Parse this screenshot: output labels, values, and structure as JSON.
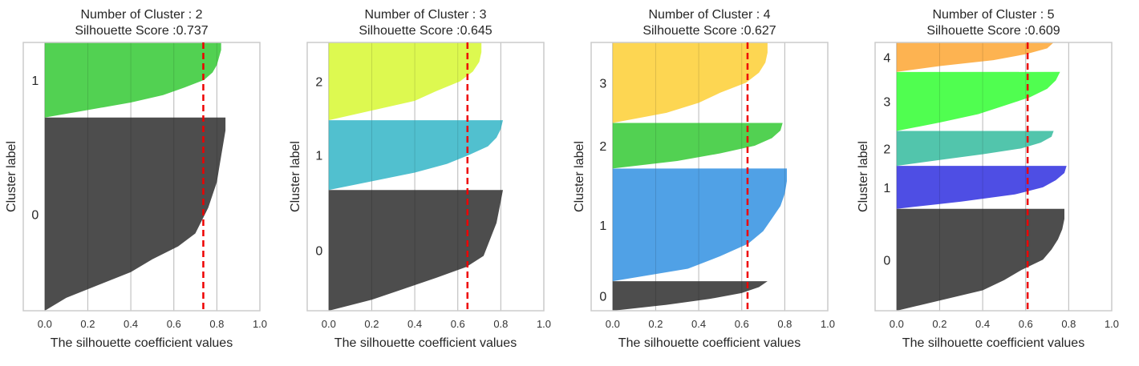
{
  "chart_data": [
    {
      "type": "area",
      "title": [
        "Number of Cluster : 2",
        "Silhouette Score :0.737"
      ],
      "xlabel": "The silhouette coefficient values",
      "ylabel": "Cluster label",
      "xlim": [
        -0.1,
        1.0
      ],
      "xticks": [
        "0.0",
        "0.2",
        "0.4",
        "0.6",
        "0.8",
        "1.0"
      ],
      "grid": true,
      "average_score": 0.737,
      "clusters": [
        {
          "label": "0",
          "color": "#474747",
          "size": 0.72,
          "profile": [
            0.84,
            0.84,
            0.83,
            0.82,
            0.81,
            0.8,
            0.78,
            0.76,
            0.73,
            0.7,
            0.62,
            0.5,
            0.4,
            0.25,
            0.1,
            0.0
          ]
        },
        {
          "label": "1",
          "color": "#4ccf4c",
          "size": 0.28,
          "profile": [
            0.82,
            0.82,
            0.81,
            0.8,
            0.78,
            0.74,
            0.65,
            0.55,
            0.4,
            0.2,
            0.0
          ]
        }
      ]
    },
    {
      "type": "area",
      "title": [
        "Number of Cluster : 3",
        "Silhouette Score :0.645"
      ],
      "xlabel": "The silhouette coefficient values",
      "ylabel": "Cluster label",
      "xlim": [
        -0.1,
        1.0
      ],
      "xticks": [
        "0.0",
        "0.2",
        "0.4",
        "0.6",
        "0.8",
        "1.0"
      ],
      "grid": true,
      "average_score": 0.645,
      "clusters": [
        {
          "label": "0",
          "color": "#474747",
          "size": 0.45,
          "profile": [
            0.81,
            0.8,
            0.79,
            0.78,
            0.76,
            0.74,
            0.72,
            0.64,
            0.5,
            0.35,
            0.2,
            0.0
          ]
        },
        {
          "label": "1",
          "color": "#4bbecd",
          "size": 0.26,
          "profile": [
            0.81,
            0.8,
            0.78,
            0.74,
            0.65,
            0.55,
            0.4,
            0.2,
            0.0
          ]
        },
        {
          "label": "2",
          "color": "#dcf94a",
          "size": 0.29,
          "profile": [
            0.71,
            0.71,
            0.7,
            0.67,
            0.61,
            0.5,
            0.4,
            0.2,
            0.0
          ]
        }
      ]
    },
    {
      "type": "area",
      "title": [
        "Number of Cluster : 4",
        "Silhouette Score :0.627"
      ],
      "xlabel": "The silhouette coefficient values",
      "ylabel": "Cluster label",
      "xlim": [
        -0.1,
        1.0
      ],
      "xticks": [
        "0.0",
        "0.2",
        "0.4",
        "0.6",
        "0.8",
        "1.0"
      ],
      "grid": true,
      "average_score": 0.627,
      "clusters": [
        {
          "label": "0",
          "color": "#474747",
          "size": 0.11,
          "profile": [
            0.72,
            0.68,
            0.6,
            0.45,
            0.25,
            0.0
          ]
        },
        {
          "label": "1",
          "color": "#4a9ee5",
          "size": 0.42,
          "profile": [
            0.81,
            0.81,
            0.8,
            0.78,
            0.74,
            0.7,
            0.63,
            0.5,
            0.35,
            0.0
          ]
        },
        {
          "label": "2",
          "color": "#4ccf4c",
          "size": 0.17,
          "profile": [
            0.79,
            0.78,
            0.74,
            0.66,
            0.5,
            0.3,
            0.0
          ]
        },
        {
          "label": "3",
          "color": "#fdd54c",
          "size": 0.3,
          "profile": [
            0.72,
            0.72,
            0.71,
            0.68,
            0.62,
            0.5,
            0.4,
            0.25,
            0.0
          ]
        }
      ]
    },
    {
      "type": "area",
      "title": [
        "Number of Cluster : 5",
        "Silhouette Score :0.609"
      ],
      "xlabel": "The silhouette coefficient values",
      "ylabel": "Cluster label",
      "xlim": [
        -0.1,
        1.0
      ],
      "xticks": [
        "0.0",
        "0.2",
        "0.4",
        "0.6",
        "0.8",
        "1.0"
      ],
      "grid": true,
      "average_score": 0.609,
      "clusters": [
        {
          "label": "0",
          "color": "#474747",
          "size": 0.38,
          "profile": [
            0.78,
            0.78,
            0.77,
            0.75,
            0.72,
            0.68,
            0.58,
            0.5,
            0.4,
            0.2,
            0.0
          ]
        },
        {
          "label": "1",
          "color": "#4848e3",
          "size": 0.16,
          "profile": [
            0.79,
            0.78,
            0.74,
            0.68,
            0.55,
            0.3,
            0.0
          ]
        },
        {
          "label": "2",
          "color": "#4cc3a9",
          "size": 0.13,
          "profile": [
            0.73,
            0.72,
            0.67,
            0.58,
            0.4,
            0.2,
            0.0
          ]
        },
        {
          "label": "3",
          "color": "#4afe4a",
          "size": 0.22,
          "profile": [
            0.76,
            0.74,
            0.7,
            0.62,
            0.5,
            0.38,
            0.2,
            0.0
          ]
        },
        {
          "label": "4",
          "color": "#fdb14b",
          "size": 0.11,
          "profile": [
            0.73,
            0.7,
            0.6,
            0.45,
            0.2,
            0.0
          ]
        }
      ]
    }
  ]
}
